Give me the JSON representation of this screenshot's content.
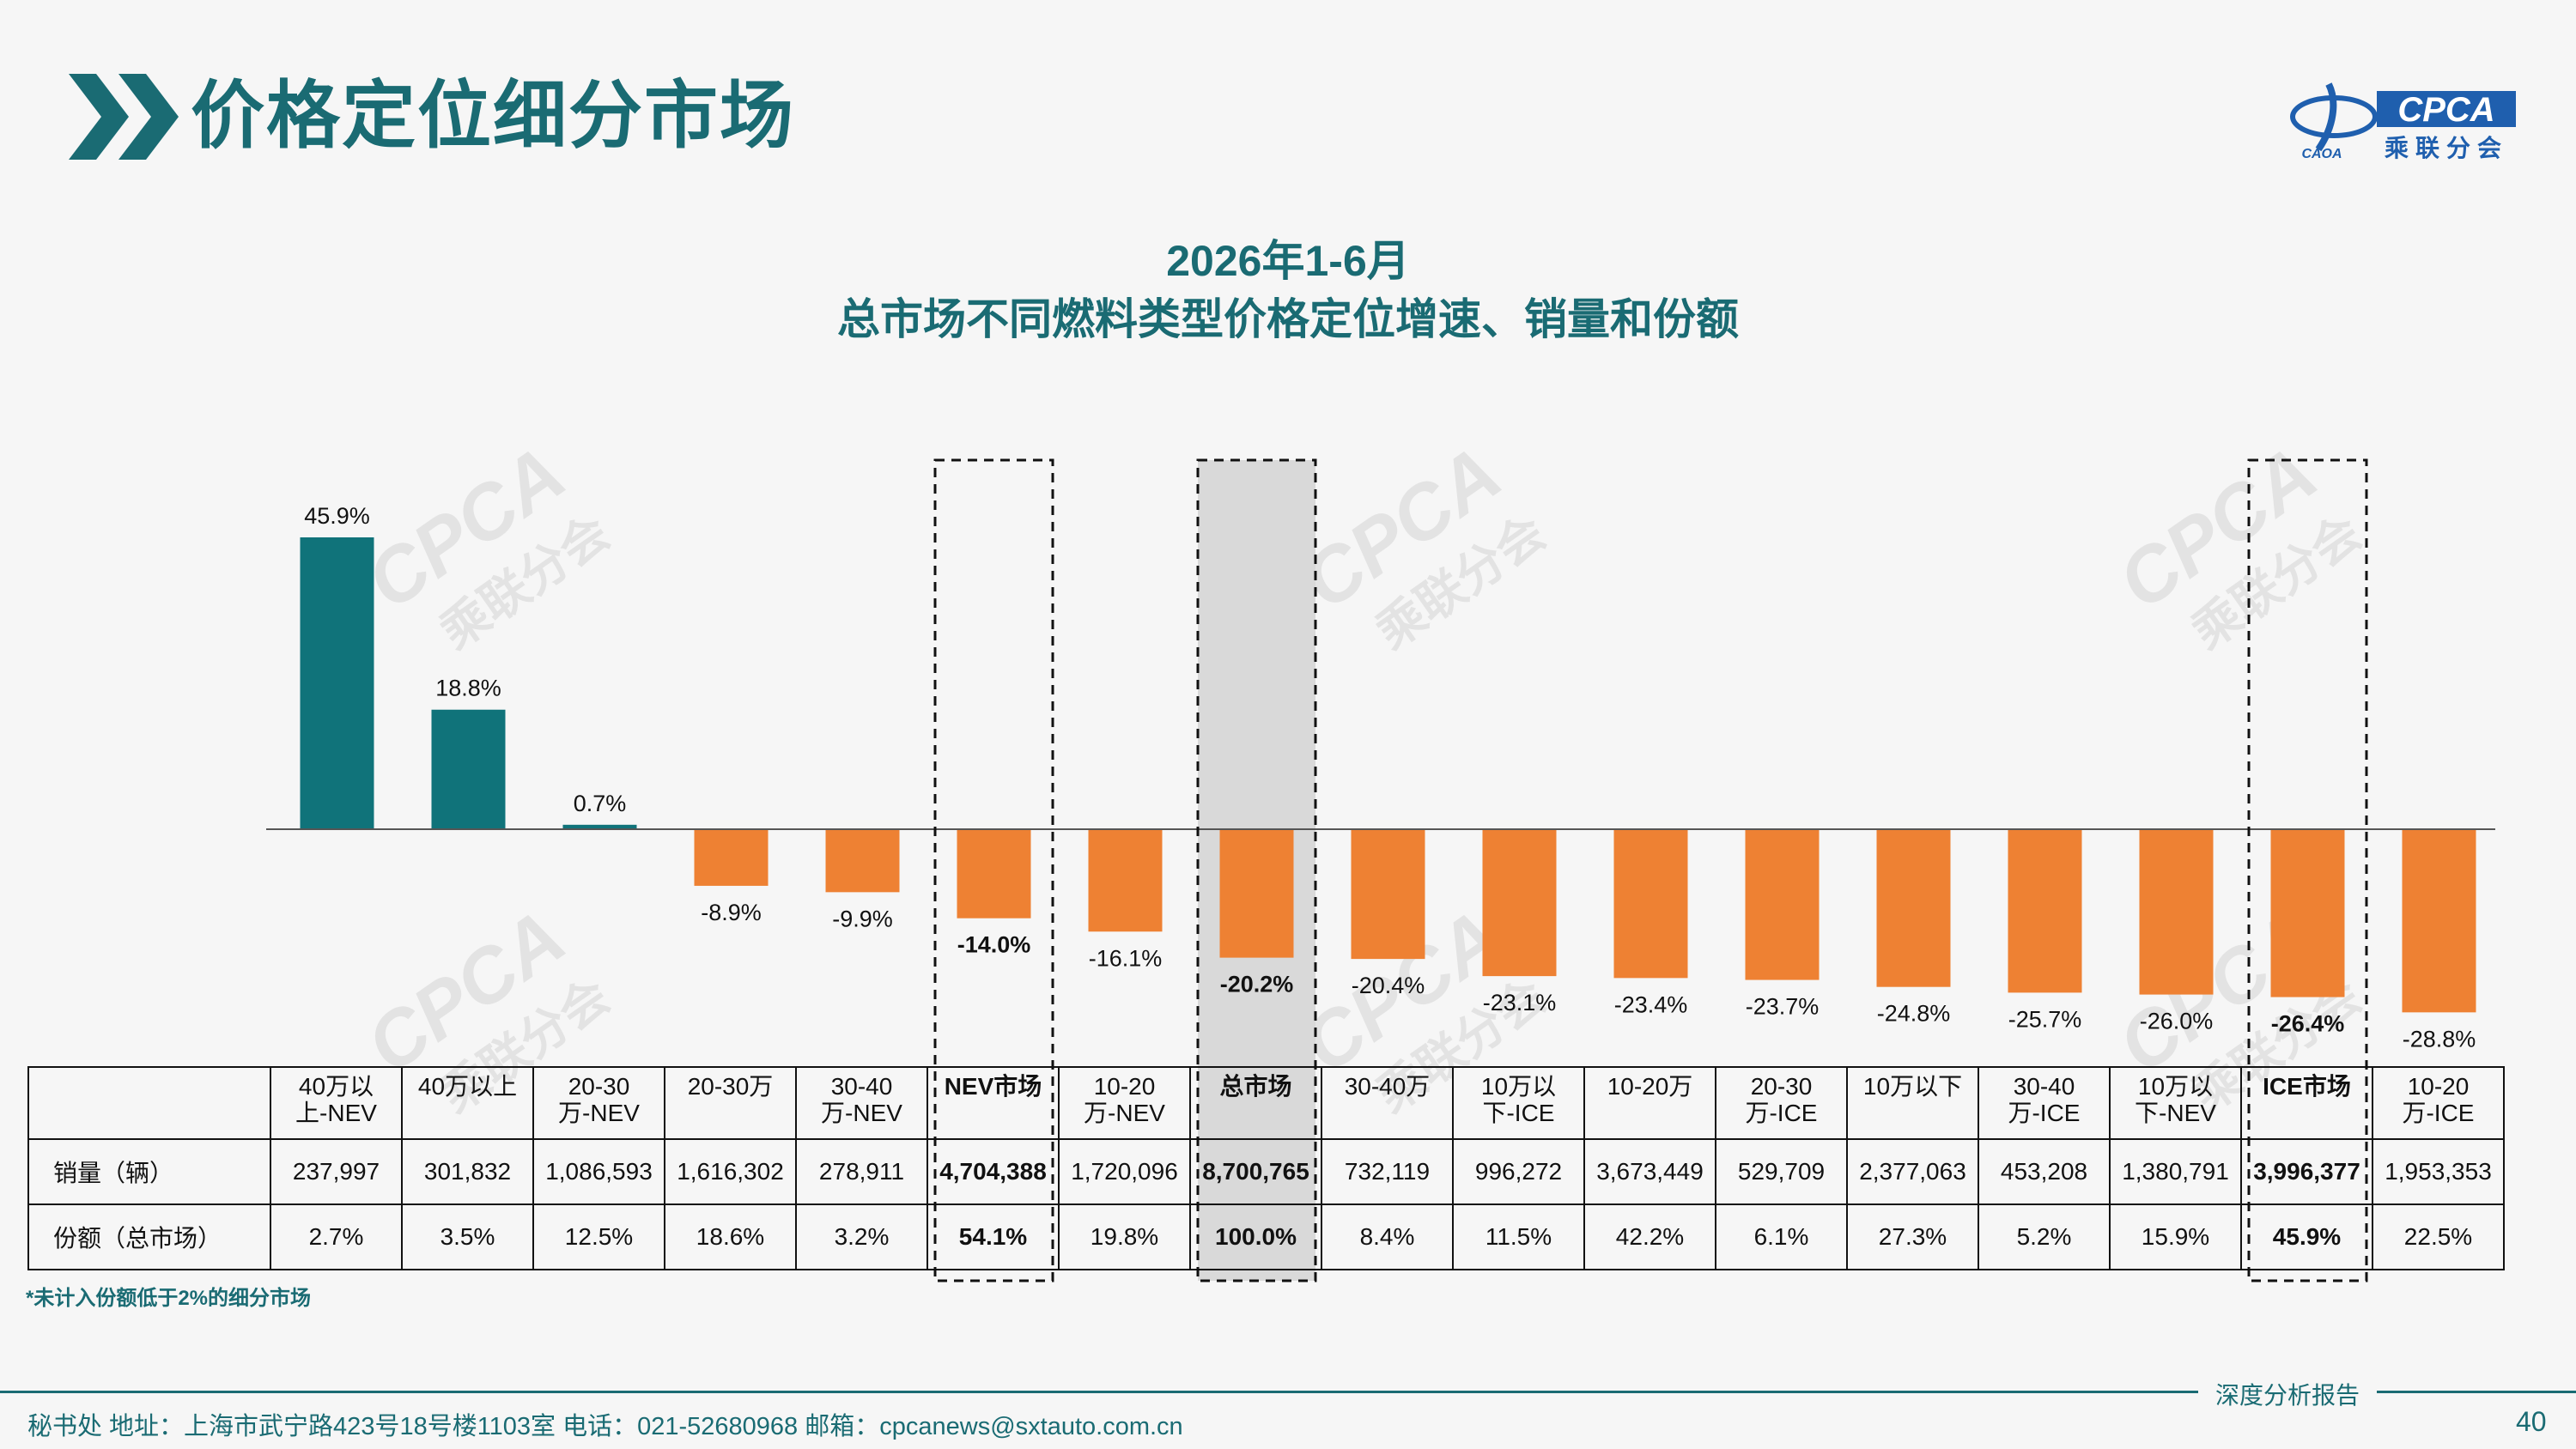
{
  "header": {
    "title": "价格定位细分市场",
    "logo_text": "CPCA",
    "logo_sub": "乘联分会",
    "logo_small": "CAOA"
  },
  "colors": {
    "teal": "#10737a",
    "orange": "#ee8133",
    "text_teal": "#1a6b73",
    "highlight_gray": "#d9d9d9"
  },
  "watermark": {
    "text": "CPCA",
    "sub": "乘联分会"
  },
  "chart_data": {
    "type": "bar",
    "title_line1": "2026年1-6月",
    "title_line2": "总市场不同燃料类型价格定位增速、销量和份额",
    "categories": [
      "40万以上-NEV",
      "40万以上",
      "20-30万-NEV",
      "20-30万",
      "30-40万-NEV",
      "NEV市场",
      "10-20万-NEV",
      "总市场",
      "30-40万",
      "10万以下-ICE",
      "10-20万",
      "20-30万-ICE",
      "10万以下",
      "30-40万-ICE",
      "10万以下-NEV",
      "ICE市场",
      "10-20万-ICE"
    ],
    "values": [
      45.9,
      18.8,
      0.7,
      -8.9,
      -9.9,
      -14.0,
      -16.1,
      -20.2,
      -20.4,
      -23.1,
      -23.4,
      -23.7,
      -24.8,
      -25.7,
      -26.0,
      -26.4,
      -28.8
    ],
    "value_labels": [
      "45.9%",
      "18.8%",
      "0.7%",
      "-8.9%",
      "-9.9%",
      "-14.0%",
      "-16.1%",
      "-20.2%",
      "-20.4%",
      "-23.1%",
      "-23.4%",
      "-23.7%",
      "-24.8%",
      "-25.7%",
      "-26.0%",
      "-26.4%",
      "-28.8%"
    ],
    "bar_colors": [
      "teal",
      "teal",
      "teal",
      "orange",
      "orange",
      "orange",
      "orange",
      "orange",
      "orange",
      "orange",
      "orange",
      "orange",
      "orange",
      "orange",
      "orange",
      "orange",
      "orange"
    ],
    "emphasized": [
      false,
      false,
      false,
      false,
      false,
      true,
      false,
      true,
      false,
      false,
      false,
      false,
      false,
      false,
      false,
      true,
      false
    ],
    "highlighted_dashed": [
      5,
      7,
      15
    ],
    "highlighted_shaded": [
      7
    ],
    "unit": "%",
    "grid": false,
    "legend": "none"
  },
  "table": {
    "header_labels": [
      [
        "40万以",
        "上-NEV"
      ],
      [
        "40万以上"
      ],
      [
        "20-30",
        "万-NEV"
      ],
      [
        "20-30万"
      ],
      [
        "30-40",
        "万-NEV"
      ],
      [
        "NEV市场"
      ],
      [
        "10-20",
        "万-NEV"
      ],
      [
        "总市场"
      ],
      [
        "30-40万"
      ],
      [
        "10万以",
        "下-ICE"
      ],
      [
        "10-20万"
      ],
      [
        "20-30",
        "万-ICE"
      ],
      [
        "10万以下"
      ],
      [
        "30-40",
        "万-ICE"
      ],
      [
        "10万以",
        "下-NEV"
      ],
      [
        "ICE市场"
      ],
      [
        "10-20",
        "万-ICE"
      ]
    ],
    "rows": [
      {
        "label": "销量（辆）",
        "cells": [
          "237,997",
          "301,832",
          "1,086,593",
          "1,616,302",
          "278,911",
          "4,704,388",
          "1,720,096",
          "8,700,765",
          "732,119",
          "996,272",
          "3,673,449",
          "529,709",
          "2,377,063",
          "453,208",
          "1,380,791",
          "3,996,377",
          "1,953,353"
        ]
      },
      {
        "label": "份额（总市场）",
        "cells": [
          "2.7%",
          "3.5%",
          "12.5%",
          "18.6%",
          "3.2%",
          "54.1%",
          "19.8%",
          "100.0%",
          "8.4%",
          "11.5%",
          "42.2%",
          "6.1%",
          "27.3%",
          "5.2%",
          "15.9%",
          "45.9%",
          "22.5%"
        ]
      }
    ]
  },
  "footnote": "*未计入份额低于2%的细分市场",
  "footer": {
    "report_label": "深度分析报告",
    "address": "秘书处   地址：上海市武宁路423号18号楼1103室  电话：021-52680968   邮箱：cpcanews@sxtauto.com.cn",
    "page_number": "40"
  }
}
